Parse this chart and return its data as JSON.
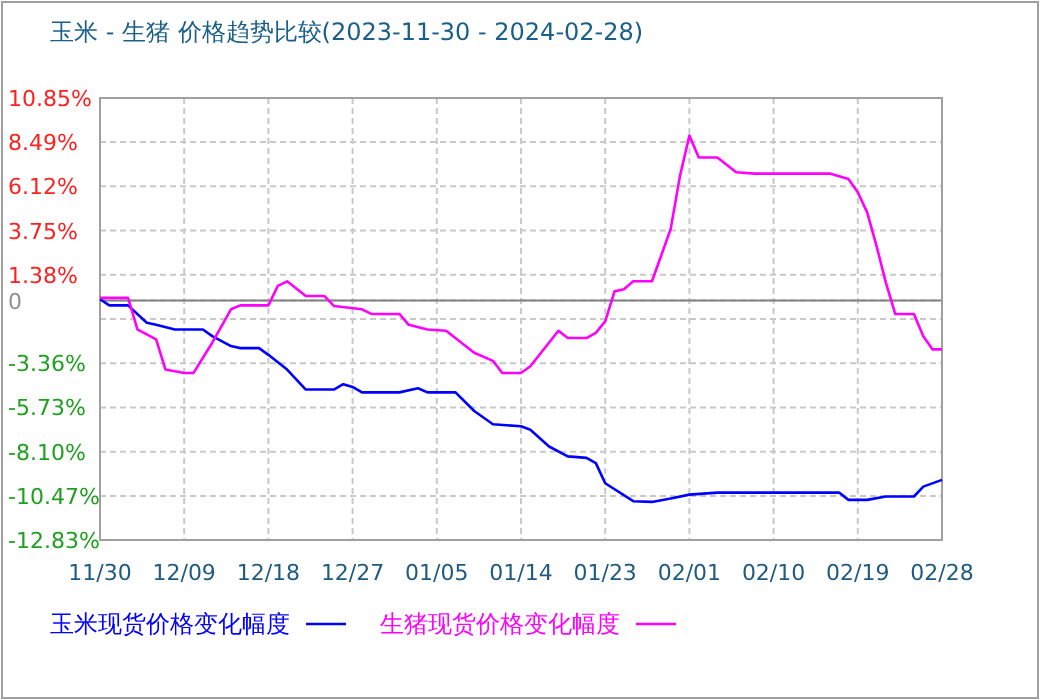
{
  "chart_data": {
    "type": "line",
    "title": "玉米 - 生猪 价格趋势比较(2023-11-30 - 2024-02-28)",
    "xlim": [
      "2023-11-30",
      "2024-02-28"
    ],
    "xticks": [
      {
        "value": "2023-11-30",
        "label": "11/30"
      },
      {
        "value": "2023-12-09",
        "label": "12/09"
      },
      {
        "value": "2023-12-18",
        "label": "12/18"
      },
      {
        "value": "2023-12-27",
        "label": "12/27"
      },
      {
        "value": "2024-01-05",
        "label": "01/05"
      },
      {
        "value": "2024-01-14",
        "label": "01/14"
      },
      {
        "value": "2024-01-23",
        "label": "01/23"
      },
      {
        "value": "2024-02-01",
        "label": "02/01"
      },
      {
        "value": "2024-02-10",
        "label": "02/10"
      },
      {
        "value": "2024-02-19",
        "label": "02/19"
      },
      {
        "value": "2024-02-28",
        "label": "02/28"
      }
    ],
    "ylim": [
      -12.83,
      10.85
    ],
    "yticks": [
      {
        "value": 10.85,
        "label": "10.85%"
      },
      {
        "value": 8.49,
        "label": "8.49%"
      },
      {
        "value": 6.12,
        "label": "6.12%"
      },
      {
        "value": 3.75,
        "label": "3.75%"
      },
      {
        "value": 1.38,
        "label": "1.38%"
      },
      {
        "value": 0,
        "label": "0"
      },
      {
        "value": -0.99,
        "label": null
      },
      {
        "value": -3.36,
        "label": "-3.36%"
      },
      {
        "value": -5.73,
        "label": "-5.73%"
      },
      {
        "value": -8.1,
        "label": "-8.10%"
      },
      {
        "value": -10.47,
        "label": "-10.47%"
      },
      {
        "value": -12.83,
        "label": "-12.83%"
      }
    ],
    "ref_lines": [
      {
        "axis": "y",
        "value": 0,
        "color": "#808080"
      }
    ],
    "grid": true,
    "legend": "bottom",
    "marker": "none",
    "line_style": "solid",
    "series": [
      {
        "name": "玉米现货价格变化幅度",
        "color": "#0000ff",
        "x": [
          "2023-11-30",
          "2023-12-01",
          "2023-12-03",
          "2023-12-05",
          "2023-12-06",
          "2023-12-08",
          "2023-12-11",
          "2023-12-12",
          "2023-12-14",
          "2023-12-15",
          "2023-12-17",
          "2023-12-18",
          "2023-12-20",
          "2023-12-22",
          "2023-12-25",
          "2023-12-26",
          "2023-12-27",
          "2023-12-28",
          "2024-01-01",
          "2024-01-03",
          "2024-01-04",
          "2024-01-07",
          "2024-01-09",
          "2024-01-11",
          "2024-01-14",
          "2024-01-15",
          "2024-01-17",
          "2024-01-19",
          "2024-01-21",
          "2024-01-22",
          "2024-01-23",
          "2024-01-26",
          "2024-01-28",
          "2024-01-30",
          "2024-02-01",
          "2024-02-04",
          "2024-02-17",
          "2024-02-18",
          "2024-02-20",
          "2024-02-22",
          "2024-02-25",
          "2024-02-26",
          "2024-02-28"
        ],
        "values": [
          0.07,
          -0.26,
          -0.26,
          -1.19,
          -1.3,
          -1.55,
          -1.55,
          -1.91,
          -2.44,
          -2.55,
          -2.55,
          -2.91,
          -3.7,
          -4.77,
          -4.77,
          -4.48,
          -4.63,
          -4.92,
          -4.92,
          -4.7,
          -4.92,
          -4.92,
          -5.92,
          -6.63,
          -6.74,
          -6.92,
          -7.82,
          -8.35,
          -8.43,
          -8.71,
          -9.79,
          -10.75,
          -10.79,
          -10.61,
          -10.4,
          -10.29,
          -10.29,
          -10.68,
          -10.68,
          -10.5,
          -10.5,
          -9.97,
          -9.61
        ]
      },
      {
        "name": "生猪现货价格变化幅度",
        "color": "#ff00ff",
        "x": [
          "2023-11-30",
          "2023-12-03",
          "2023-12-04",
          "2023-12-06",
          "2023-12-07",
          "2023-12-09",
          "2023-12-10",
          "2023-12-12",
          "2023-12-14",
          "2023-12-15",
          "2023-12-18",
          "2023-12-19",
          "2023-12-20",
          "2023-12-22",
          "2023-12-24",
          "2023-12-25",
          "2023-12-28",
          "2023-12-29",
          "2024-01-01",
          "2024-01-02",
          "2024-01-04",
          "2024-01-06",
          "2024-01-09",
          "2024-01-11",
          "2024-01-12",
          "2024-01-14",
          "2024-01-15",
          "2024-01-18",
          "2024-01-19",
          "2024-01-21",
          "2024-01-22",
          "2024-01-23",
          "2024-01-24",
          "2024-01-25",
          "2024-01-26",
          "2024-01-28",
          "2024-01-30",
          "2024-01-31",
          "2024-02-01",
          "2024-02-02",
          "2024-02-04",
          "2024-02-06",
          "2024-02-08",
          "2024-02-16",
          "2024-02-18",
          "2024-02-19",
          "2024-02-20",
          "2024-02-21",
          "2024-02-22",
          "2024-02-23",
          "2024-02-25",
          "2024-02-26",
          "2024-02-27",
          "2024-02-28"
        ],
        "values": [
          0.14,
          0.14,
          -1.55,
          -2.08,
          -3.7,
          -3.88,
          -3.88,
          -2.26,
          -0.47,
          -0.26,
          -0.26,
          0.78,
          1.03,
          0.24,
          0.24,
          -0.29,
          -0.47,
          -0.72,
          -0.72,
          -1.3,
          -1.55,
          -1.62,
          -2.8,
          -3.23,
          -3.88,
          -3.88,
          -3.52,
          -1.62,
          -2.01,
          -2.01,
          -1.73,
          -1.12,
          0.49,
          0.6,
          1.03,
          1.03,
          3.83,
          6.69,
          8.84,
          7.66,
          7.66,
          6.87,
          6.8,
          6.8,
          6.51,
          5.8,
          4.72,
          2.93,
          0.96,
          -0.72,
          -0.72,
          -1.91,
          -2.62,
          -2.62
        ]
      }
    ]
  }
}
